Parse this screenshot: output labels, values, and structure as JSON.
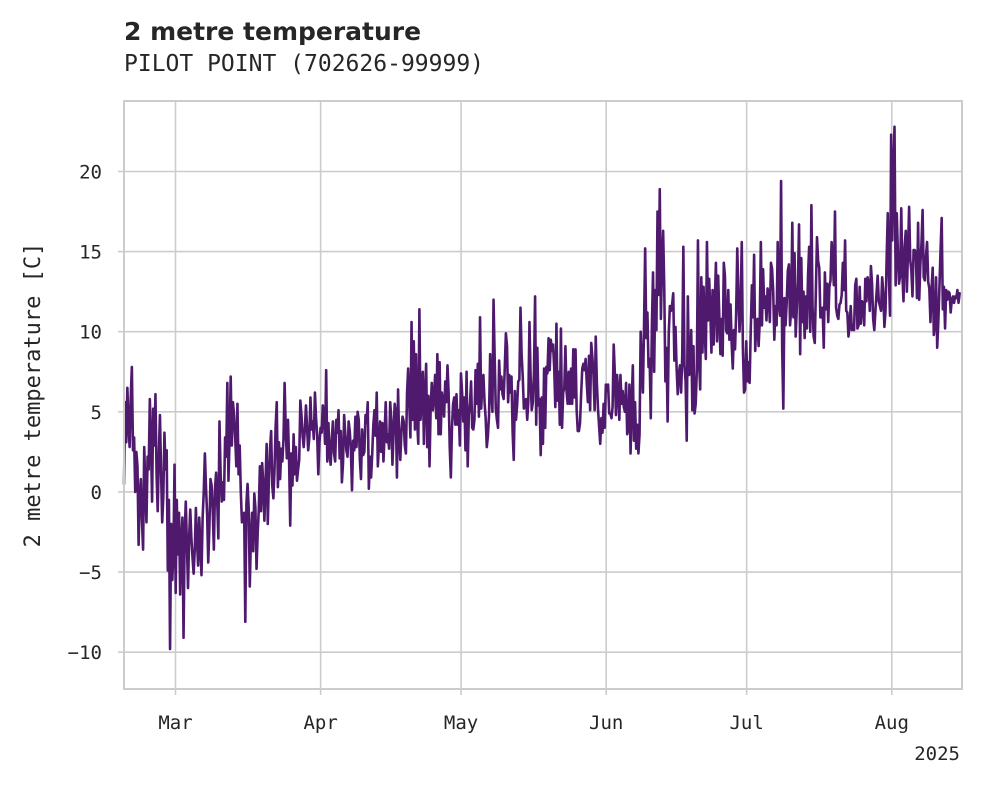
{
  "title": "2 metre temperature",
  "subtitle": "PILOT POINT (702626-99999)",
  "chart_data": {
    "type": "line",
    "title": "2 metre temperature",
    "subtitle": "PILOT POINT (702626-99999)",
    "xlabel": "",
    "ylabel": "2 metre temperature [C]",
    "x_offset_label": "2025",
    "x_ticks": [
      "Mar",
      "Apr",
      "May",
      "Jun",
      "Jul",
      "Aug"
    ],
    "y_ticks": [
      "−10",
      "−5",
      "0",
      "5",
      "10",
      "15",
      "20"
    ],
    "ylim": [
      -12.3,
      24.4
    ],
    "xlim": [
      "2025-02-18",
      "2025-08-16"
    ],
    "grid": true,
    "line_color": "#4f1a6e",
    "series": [
      {
        "start": "2025-02-18",
        "step_hours": 24,
        "values": [
          0.5,
          5.6,
          3.1,
          6.5,
          4.2,
          2.8,
          5.9,
          7.8,
          2.6,
          3.4,
          0.0,
          2.5,
          1.6,
          -3.3,
          -0.2,
          0.8,
          -1.8,
          -3.6,
          2.8,
          0.2,
          -1.9,
          2.2,
          1.4,
          5.8,
          3.2,
          -0.6,
          5.2,
          2.9,
          6.1,
          1.1,
          -1.2,
          2.3,
          4.8,
          1.3,
          -1.9,
          -0.3,
          3.7,
          1.4,
          2.6,
          -4.9,
          -0.5,
          -9.8,
          -2.0,
          -5.5,
          -3.8,
          1.7,
          -6.3,
          -0.5,
          -3.9,
          -1.3,
          -6.4,
          -3.0,
          -1.6,
          -9.1,
          -2.7,
          -0.6,
          -3.3,
          -6.0,
          -2.8,
          -1.1,
          -2.9,
          -4.1,
          -5.1,
          -3.6,
          -1.0,
          -3.1,
          -4.6,
          -1.6,
          -3.4,
          -5.2,
          -1.6,
          0.0,
          2.4,
          0.3,
          -1.4,
          -4.4,
          -2.3,
          0.8,
          0.4,
          -1.2,
          -3.6,
          0.2,
          1.2,
          -0.6,
          -2.9,
          4.4,
          1.2,
          -0.6,
          0.6,
          -0.5,
          3.4,
          2.2,
          6.8,
          0.7,
          3.3,
          7.2,
          2.9,
          5.6,
          4.8,
          3.4,
          1.6,
          5.5,
          1.1,
          2.9,
          0.0,
          -1.9,
          -1.6,
          -1.3,
          -8.1,
          -0.7,
          0.5,
          -1.0,
          -5.9,
          -2.8,
          -1.3,
          -3.7,
          -0.1,
          -1.0,
          -4.8,
          -2.6,
          -1.1,
          1.6,
          -1.2,
          1.8,
          0.5,
          -1.8,
          0.6,
          3.0,
          -2.0,
          0.8,
          2.7,
          3.8,
          0.4,
          -0.4,
          1.4,
          4.1,
          5.6,
          0.3,
          3.1,
          0.8,
          2.7,
          1.9,
          3.3,
          6.8,
          3.9,
          2.1,
          4.5,
          1.9,
          -2.1,
          2.4,
          0.4,
          3.6,
          1.1,
          2.8,
          0.7,
          1.4,
          2.0,
          5.7,
          4.8,
          3.5,
          2.8,
          3.9,
          5.4,
          4.0,
          2.6,
          3.4,
          5.9,
          3.9,
          4.4,
          3.3,
          6.2,
          4.6,
          3.5,
          1.1,
          3.1,
          4.0,
          3.7,
          5.4,
          4.8,
          3.0,
          7.6,
          1.9,
          4.3,
          2.4,
          1.7,
          3.3,
          4.4,
          2.4,
          1.9,
          4.5,
          3.7,
          5.1,
          2.1,
          3.8,
          0.6,
          1.8,
          4.8,
          3.6,
          2.6,
          2.2,
          4.4,
          3.8,
          2.6,
          0.1,
          3.2,
          2.6,
          4.7,
          2.8,
          5.0,
          4.5,
          2.0,
          0.8,
          3.9,
          2.3,
          2.5,
          4.8,
          4.3,
          5.6,
          0.2,
          2.2,
          0.9,
          2.4,
          4.2,
          5.1,
          3.5,
          6.2,
          1.6,
          3.0,
          4.4,
          2.5,
          4.3,
          1.9,
          3.6,
          5.6,
          3.1,
          3.6,
          2.7,
          5.6,
          4.5,
          1.7,
          3.7,
          5.5,
          4.9,
          0.9,
          6.4,
          3.2,
          2.0,
          3.8,
          4.7,
          4.4,
          2.9,
          2.4,
          6.2,
          7.7,
          5.5,
          3.4,
          10.6,
          4.5,
          9.4,
          3.9,
          8.6,
          4.4,
          3.0,
          11.4,
          4.5,
          5.7,
          7.5,
          3.0,
          6.1,
          8.0,
          2.8,
          6.0,
          1.6,
          5.2,
          6.8,
          5.1,
          5.9,
          7.3,
          4.6,
          8.6,
          3.6,
          8.1,
          3.6,
          6.2,
          5.6,
          4.7,
          6.9,
          5.6,
          7.9,
          6.2,
          2.8,
          0.9,
          4.0,
          5.5,
          5.9,
          4.2,
          6.1,
          4.2,
          5.1,
          2.9,
          7.4,
          6.2,
          4.4,
          5.9,
          2.6,
          7.5,
          1.6,
          4.8,
          5.5,
          6.9,
          4.0,
          3.9,
          4.5,
          7.6,
          5.5,
          8.0,
          4.7,
          10.9,
          5.2,
          6.6,
          7.3,
          5.6,
          4.6,
          2.8,
          3.5,
          4.8,
          8.6,
          6.2,
          5.0,
          12.0,
          8.4,
          5.2,
          4.5,
          4.0,
          8.2,
          6.4,
          7.2,
          6.1,
          5.8,
          7.7,
          9.9,
          9.1,
          5.6,
          7.3,
          6.2,
          7.2,
          3.7,
          2.0,
          6.3,
          4.5,
          5.4,
          6.9,
          7.0,
          11.5,
          8.6,
          7.2,
          5.2,
          5.4,
          5.8,
          4.5,
          5.7,
          10.6,
          7.2,
          5.1,
          5.6,
          7.5,
          12.2,
          4.2,
          9.0,
          5.4,
          5.8,
          2.3,
          5.9,
          3.0,
          7.7,
          4.0,
          7.8,
          7.4,
          9.6,
          7.6,
          9.5,
          8.8,
          9.2,
          7.8,
          5.3,
          10.5,
          5.7,
          7.5,
          4.2,
          10.2,
          4.0,
          6.2,
          6.5,
          9.1,
          6.3,
          5.5,
          7.5,
          5.5,
          7.7,
          5.5,
          8.9,
          5.9,
          8.9,
          5.1,
          3.8,
          3.8,
          4.3,
          6.1,
          7.7,
          8.0,
          7.6,
          8.3,
          6.8,
          5.6,
          8.5,
          5.1,
          9.3,
          8.4,
          7.3,
          5.1,
          9.7,
          6.8,
          5.2,
          4.1,
          3.0,
          4.6,
          3.7,
          5.5,
          4.0,
          6.7,
          6.3,
          6.7,
          4.9,
          4.9,
          4.6,
          5.3,
          9.2,
          7.4,
          4.8,
          7.3,
          6.3,
          4.5,
          7.3,
          5.5,
          6.3,
          5.3,
          5.0,
          6.8,
          3.6,
          3.9,
          6.7,
          2.4,
          5.4,
          7.9,
          3.2,
          5.6,
          2.7,
          4.2,
          2.4,
          3.6,
          10.0,
          7.9,
          6.2,
          10.4,
          15.2,
          9.6,
          11.2,
          7.8,
          8.3,
          4.6,
          10.4,
          13.7,
          7.5,
          12.6,
          10.1,
          17.5,
          12.3,
          18.9,
          10.8,
          14.3,
          16.3,
          12.7,
          6.9,
          9.0,
          4.4,
          9.9,
          11.6,
          11.3,
          11.7,
          12.4,
          8.2,
          10.3,
          7.7,
          6.1,
          7.4,
          7.9,
          6.2,
          8.5,
          15.3,
          7.9,
          6.9,
          3.2,
          12.2,
          7.3,
          7.4,
          10.1,
          5.1,
          9.1,
          4.9,
          5.5,
          7.6,
          15.7,
          8.2,
          6.4,
          13.4,
          8.7,
          12.8,
          10.1,
          8.3,
          15.6,
          10.7,
          13.3,
          11.3,
          8.7,
          12.6,
          9.2,
          11.9,
          14.3,
          9.4,
          13.5,
          11.0,
          8.6,
          10.8,
          8.5,
          14.3,
          13.5,
          10.1,
          9.9,
          12.6,
          9.5,
          11.7,
          9.3,
          7.7,
          10.1,
          8.9,
          11.1,
          15.2,
          12.3,
          10.0,
          11.7,
          15.6,
          9.0,
          6.2,
          6.4,
          9.4,
          6.9,
          8.1,
          6.8,
          10.1,
          12.9,
          10.9,
          14.8,
          8.8,
          10.7,
          10.8,
          9.1,
          10.6,
          15.6,
          10.4,
          13.9,
          11.5,
          12.2,
          10.7,
          12.7,
          12.3,
          10.6,
          14.3,
          13.9,
          12.5,
          9.5,
          11.6,
          10.4,
          15.6,
          11.7,
          11.0,
          19.4,
          8.9,
          5.2,
          12.1,
          10.4,
          11.8,
          13.8,
          14.2,
          10.4,
          11.4,
          16.8,
          10.9,
          14.9,
          9.7,
          11.5,
          13.1,
          16.7,
          8.6,
          14.6,
          10.6,
          12.5,
          9.6,
          12.2,
          10.2,
          13.5,
          15.3,
          10.0,
          17.9,
          11.6,
          9.7,
          9.3,
          12.6,
          15.9,
          14.4,
          14.0,
          10.9,
          10.9,
          11.5,
          9.0,
          13.7,
          11.4,
          13.0,
          10.6,
          12.8,
          13.2,
          15.6,
          14.4,
          12.9,
          17.5,
          11.5,
          11.0,
          10.8,
          11.7,
          11.8,
          12.3,
          14.3,
          12.6,
          15.7,
          11.3,
          11.2,
          9.7,
          10.4,
          11.6,
          10.1,
          10.4,
          10.1,
          12.9,
          13.3,
          10.2,
          10.4,
          12.8,
          10.5,
          11.9,
          11.8,
          10.4,
          13.3,
          11.9,
          13.4,
          13.0,
          11.3,
          14.1,
          13.0,
          10.8,
          10.1,
          11.3,
          12.4,
          13.5,
          11.9,
          11.6,
          11.3,
          13.4,
          12.4,
          10.3,
          11.3,
          14.6,
          17.4,
          13.5,
          11.0,
          22.3,
          15.7,
          20.0,
          22.8,
          12.9,
          17.4,
          15.0,
          13.0,
          13.5,
          17.7,
          13.6,
          11.9,
          15.3,
          16.3,
          12.5,
          15.0,
          17.8,
          14.5,
          13.8,
          12.2,
          15.1,
          15.1,
          14.9,
          12.1,
          16.8,
          12.0,
          14.2,
          15.5,
          17.6,
          13.4,
          13.2,
          14.7,
          15.6,
          13.1,
          12.7,
          10.6,
          12.7,
          14.0,
          9.8,
          10.5,
          13.4,
          9.0,
          10.6,
          12.8,
          15.1,
          17.1,
          11.4,
          12.8,
          10.2,
          12.6,
          12.0,
          12.5,
          12.4,
          11.2,
          12.0,
          12.2,
          11.8,
          12.2,
          12.1,
          12.6,
          11.8,
          12.4
        ]
      }
    ]
  }
}
